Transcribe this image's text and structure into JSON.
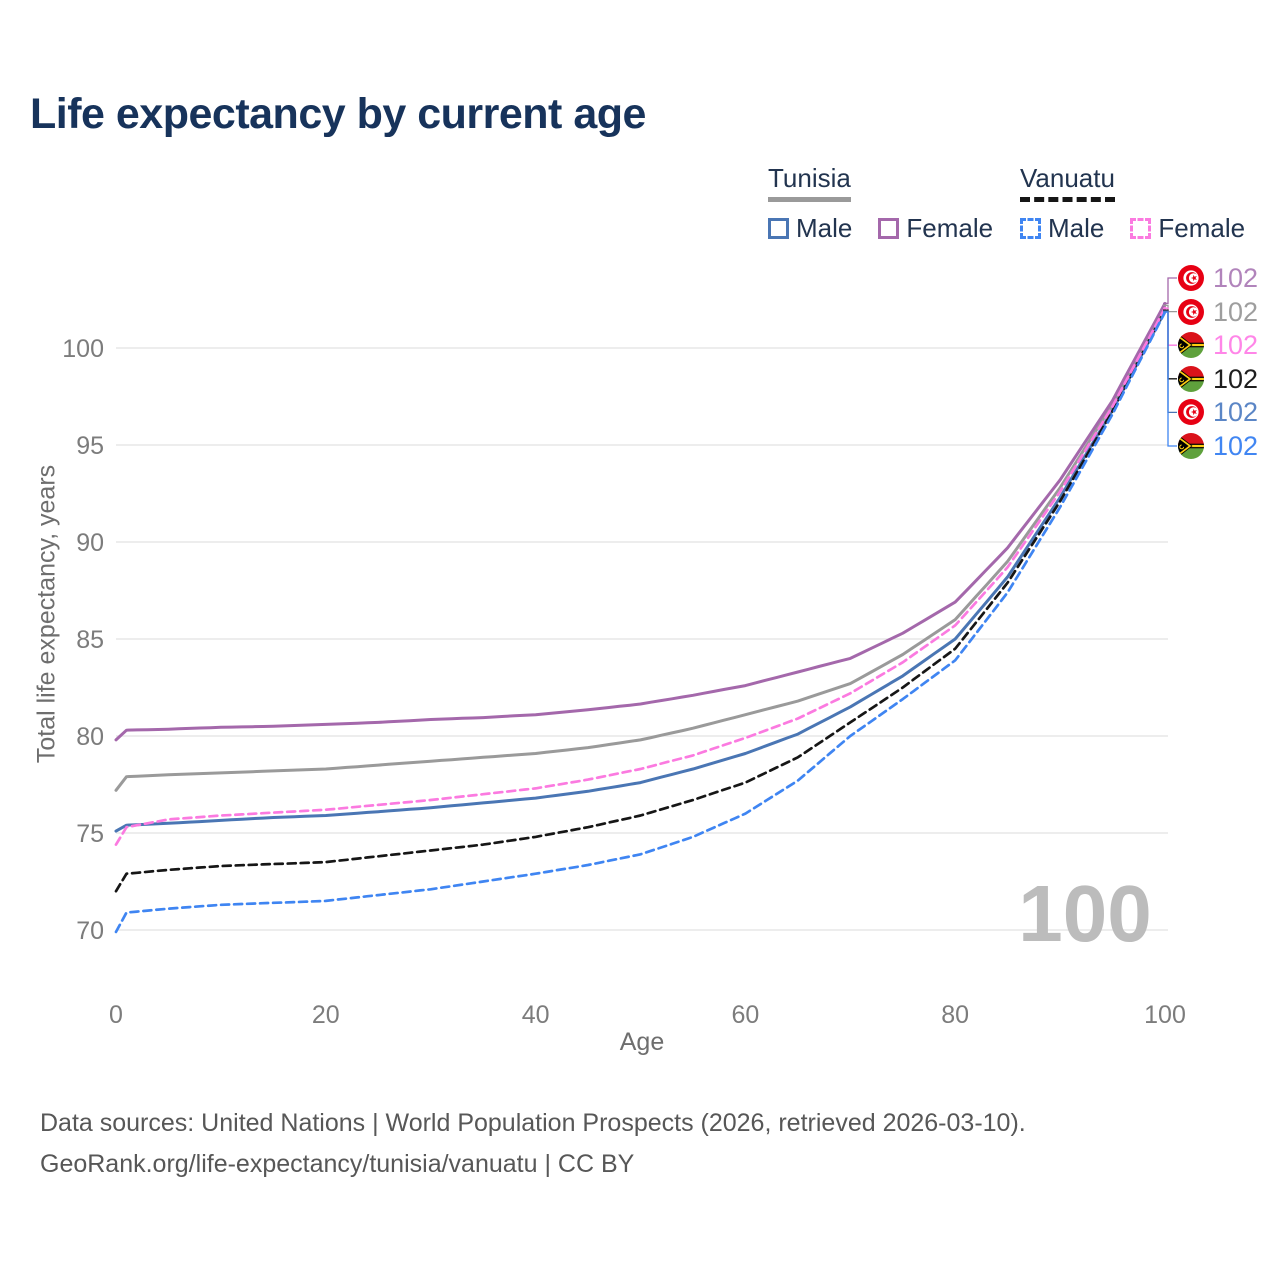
{
  "title": "Life expectancy by current age",
  "watermark": "100",
  "footer": {
    "line1": "Data sources: United Nations | World Population Prospects (2026, retrieved 2026-03-10).",
    "line2": "GeoRank.org/life-expectancy/tunisia/vanuatu | CC BY"
  },
  "legend": {
    "tunisia": {
      "name": "Tunisia",
      "male": "Male",
      "female": "Female"
    },
    "vanuatu": {
      "name": "Vanuatu",
      "male": "Male",
      "female": "Female"
    }
  },
  "chart_data": {
    "type": "line",
    "title": "Life expectancy by current age",
    "xlabel": "Age",
    "ylabel": "Total life expectancy, years",
    "xlim": [
      0,
      100
    ],
    "ylim": [
      68,
      103
    ],
    "x_ticks": [
      0,
      20,
      40,
      60,
      80,
      100
    ],
    "y_ticks": [
      70,
      75,
      80,
      85,
      90,
      95,
      100
    ],
    "grid": "horizontal",
    "legend_position": "top-right",
    "age_cursor": "100",
    "x": [
      0,
      1,
      5,
      10,
      15,
      20,
      25,
      30,
      35,
      40,
      45,
      50,
      55,
      60,
      65,
      70,
      75,
      80,
      85,
      90,
      95,
      100
    ],
    "series": [
      {
        "name": "Tunisia Female",
        "country": "Tunisia",
        "country_code": "tn",
        "sex": "Female",
        "line_style": "solid",
        "color": "#a468ab",
        "label_color": "#b184bb",
        "end_label": "102",
        "values": [
          79.8,
          80.3,
          80.35,
          80.45,
          80.5,
          80.6,
          80.7,
          80.85,
          80.95,
          81.1,
          81.35,
          81.65,
          82.1,
          82.6,
          83.3,
          84.0,
          85.3,
          86.9,
          89.7,
          93.2,
          97.3,
          102.3
        ]
      },
      {
        "name": "Tunisia Both sexes",
        "country": "Tunisia",
        "country_code": "tn",
        "sex": "Both sexes",
        "line_style": "solid",
        "color": "#9a9a9a",
        "label_color": "#9e9e9e",
        "end_label": "102",
        "values": [
          77.2,
          77.9,
          78.0,
          78.1,
          78.2,
          78.3,
          78.5,
          78.7,
          78.9,
          79.1,
          79.4,
          79.8,
          80.4,
          81.1,
          81.8,
          82.7,
          84.2,
          86.0,
          89.0,
          92.8,
          97.1,
          102.2
        ]
      },
      {
        "name": "Vanuatu Female",
        "country": "Vanuatu",
        "country_code": "vu",
        "sex": "Female",
        "line_style": "dashed",
        "color": "#fb7ae0",
        "label_color": "#ff86e8",
        "end_label": "102",
        "values": [
          74.4,
          75.3,
          75.7,
          75.9,
          76.05,
          76.2,
          76.45,
          76.7,
          77.0,
          77.3,
          77.75,
          78.3,
          79.0,
          79.9,
          80.9,
          82.2,
          83.8,
          85.7,
          88.7,
          92.6,
          97.0,
          102.05
        ]
      },
      {
        "name": "Vanuatu Both sexes",
        "country": "Vanuatu",
        "country_code": "vu",
        "sex": "Both sexes",
        "line_style": "dashed",
        "color": "#161616",
        "label_color": "#1f1f1f",
        "end_label": "102",
        "values": [
          72.0,
          72.9,
          73.1,
          73.3,
          73.4,
          73.5,
          73.8,
          74.1,
          74.4,
          74.8,
          75.3,
          75.9,
          76.7,
          77.6,
          78.9,
          80.7,
          82.5,
          84.5,
          87.9,
          92.1,
          96.75,
          101.95
        ]
      },
      {
        "name": "Tunisia Male",
        "country": "Tunisia",
        "country_code": "tn",
        "sex": "Male",
        "line_style": "solid",
        "color": "#4a76b4",
        "label_color": "#5b86c6",
        "end_label": "102",
        "values": [
          75.1,
          75.4,
          75.5,
          75.65,
          75.8,
          75.9,
          76.1,
          76.3,
          76.55,
          76.8,
          77.15,
          77.6,
          78.3,
          79.1,
          80.1,
          81.5,
          83.1,
          85.0,
          88.2,
          92.3,
          96.8,
          101.9
        ]
      },
      {
        "name": "Vanuatu Male",
        "country": "Vanuatu",
        "country_code": "vu",
        "sex": "Male",
        "line_style": "dashed",
        "color": "#3f85f2",
        "label_color": "#4186f2",
        "end_label": "102",
        "values": [
          69.9,
          70.9,
          71.1,
          71.3,
          71.4,
          71.5,
          71.8,
          72.1,
          72.5,
          72.9,
          73.35,
          73.9,
          74.8,
          76.0,
          77.7,
          80.0,
          81.9,
          83.9,
          87.4,
          91.8,
          96.6,
          101.85
        ]
      }
    ]
  }
}
